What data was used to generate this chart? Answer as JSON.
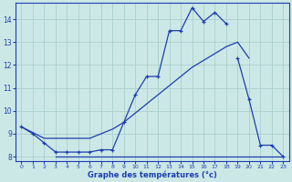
{
  "bg_color": "#cce8e6",
  "line_color": "#1e3eb0",
  "grid_color": "#aacfcc",
  "xlabel": "Graphe des températures (°c)",
  "xmin": 0,
  "xmax": 23,
  "ymin": 7.8,
  "ymax": 14.7,
  "yticks": [
    8,
    9,
    10,
    11,
    12,
    13,
    14
  ],
  "xticks": [
    0,
    1,
    2,
    3,
    4,
    5,
    6,
    7,
    8,
    9,
    10,
    11,
    12,
    13,
    14,
    15,
    16,
    17,
    18,
    19,
    20,
    21,
    22,
    23
  ],
  "curve1_x": [
    0,
    1,
    2,
    3,
    4,
    5,
    6,
    7,
    8,
    9,
    10,
    11,
    12,
    13,
    14,
    15,
    16,
    17,
    18
  ],
  "curve1_y": [
    9.3,
    9.0,
    8.6,
    8.2,
    8.2,
    8.2,
    8.2,
    8.3,
    8.3,
    9.5,
    10.7,
    11.5,
    11.5,
    13.5,
    13.5,
    14.5,
    13.9,
    14.3,
    13.8
  ],
  "curve2_x": [
    0,
    1,
    2,
    3,
    4,
    5,
    6,
    7,
    8,
    9,
    10,
    11,
    12,
    13,
    14,
    15,
    16,
    17,
    18,
    19,
    20
  ],
  "curve2_y": [
    9.3,
    9.05,
    8.8,
    8.8,
    8.8,
    8.8,
    8.8,
    9.0,
    9.2,
    9.5,
    9.9,
    10.3,
    10.7,
    11.1,
    11.5,
    11.9,
    12.2,
    12.5,
    12.8,
    13.0,
    12.3
  ],
  "curve3_x": [
    19,
    20,
    21,
    22,
    23
  ],
  "curve3_y": [
    12.3,
    10.5,
    8.5,
    8.5,
    8.0
  ],
  "flat_x": [
    3,
    4,
    5,
    6,
    7,
    8,
    9,
    10,
    11,
    12,
    13,
    14,
    15,
    16,
    17,
    18,
    19,
    20,
    21,
    22,
    23
  ],
  "flat_y": [
    8.0,
    8.0,
    8.0,
    8.0,
    8.0,
    8.0,
    8.0,
    8.0,
    8.0,
    8.0,
    8.0,
    8.0,
    8.0,
    8.0,
    8.0,
    8.0,
    8.0,
    8.0,
    8.0,
    8.0,
    8.0
  ],
  "curve2_start_x": [
    0
  ],
  "curve2_start_y": [
    9.3
  ]
}
